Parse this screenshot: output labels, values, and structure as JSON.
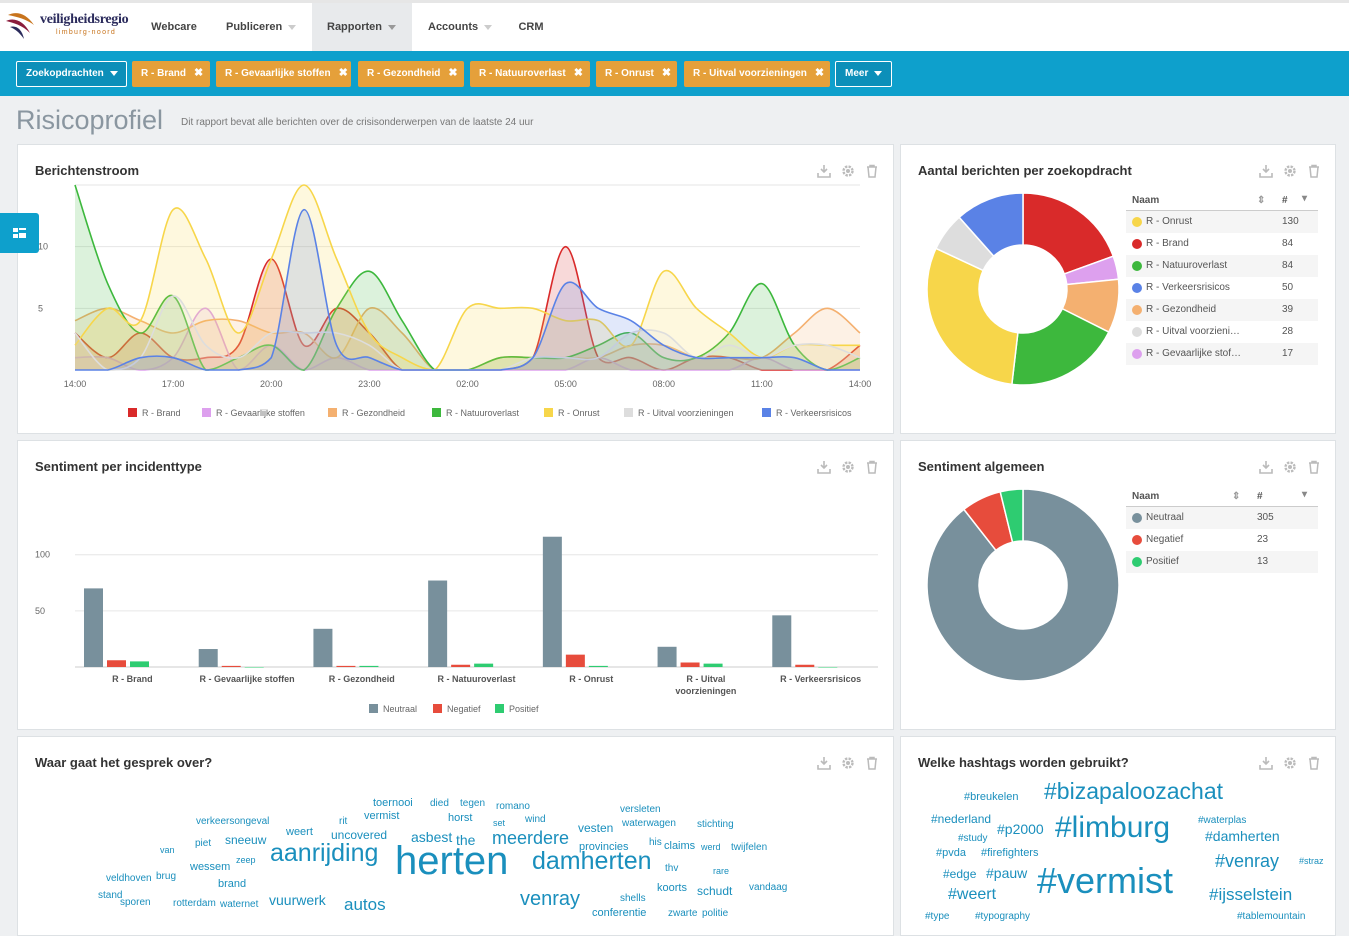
{
  "brand": {
    "name": "veiligheidsregio",
    "sub": "limburg-noord"
  },
  "nav": [
    {
      "label": "Webcare"
    },
    {
      "label": "Publiceren"
    },
    {
      "label": "Rapporten"
    },
    {
      "label": "Accounts"
    },
    {
      "label": "CRM"
    }
  ],
  "filters": {
    "search_label": "Zoekopdrachten",
    "chips": [
      "R - Brand",
      "R - Gevaarlijke stoffen",
      "R - Gezondheid",
      "R - Natuuroverlast",
      "R - Onrust",
      "R - Uitval voorzieningen"
    ],
    "more_label": "Meer"
  },
  "page": {
    "title": "Risicoprofiel",
    "subtitle": "Dit rapport bevat alle berichten over de crisisonderwerpen van de laatste 24 uur"
  },
  "colors": {
    "brand": "#e5a03a",
    "accent": "#0ea0cc",
    "red": "#d92a2a",
    "pink": "#dda0ee",
    "orange": "#f4b070",
    "green": "#3db83d",
    "yellow": "#f7d64a",
    "grey": "#dddddd",
    "blue": "#5a82e6"
  },
  "panels": {
    "stream": {
      "title": "Berichtenstroom"
    },
    "per_query": {
      "title": "Aantal berichten per zoekopdracht",
      "col_name": "Naam",
      "col_count": "#"
    },
    "sent_type": {
      "title": "Sentiment per incidenttype"
    },
    "sent_all": {
      "title": "Sentiment algemeen",
      "col_name": "Naam",
      "col_count": "#"
    },
    "words": {
      "title": "Waar gaat het gesprek over?"
    },
    "hashtags": {
      "title": "Welke hashtags worden gebruikt?"
    }
  },
  "chart_data": [
    {
      "type": "area",
      "title": "Berichtenstroom",
      "x": [
        "14:00",
        "15:00",
        "16:00",
        "17:00",
        "18:00",
        "19:00",
        "20:00",
        "21:00",
        "22:00",
        "23:00",
        "00:00",
        "01:00",
        "02:00",
        "03:00",
        "04:00",
        "05:00",
        "06:00",
        "07:00",
        "08:00",
        "09:00",
        "10:00",
        "11:00",
        "12:00",
        "13:00",
        "14:00"
      ],
      "x_ticks": [
        "14:00",
        "17:00",
        "20:00",
        "23:00",
        "02:00",
        "05:00",
        "08:00",
        "11:00",
        "14:00"
      ],
      "y_ticks": [
        "",
        "5",
        "10"
      ],
      "ylim": [
        0,
        15
      ],
      "series": [
        {
          "name": "R - Brand",
          "color": "#d92a2a",
          "values": [
            3,
            1,
            3,
            1,
            1,
            2,
            9,
            2,
            5,
            3,
            0,
            0,
            0,
            0,
            1,
            10,
            1,
            1,
            0,
            1,
            1,
            0,
            0,
            0,
            2
          ]
        },
        {
          "name": "R - Gevaarlijke stoffen",
          "color": "#dda0ee",
          "values": [
            1,
            1,
            0,
            1,
            5,
            0,
            2,
            0,
            1,
            0,
            0,
            0,
            0,
            0,
            0,
            0,
            1,
            0,
            0,
            0,
            0,
            1,
            0,
            0,
            0
          ]
        },
        {
          "name": "R - Gezondheid",
          "color": "#f4b070",
          "values": [
            4,
            5,
            4,
            3,
            4,
            4,
            3,
            3,
            1,
            5,
            3,
            0,
            0,
            1,
            1,
            1,
            1,
            2,
            2,
            1,
            1,
            1,
            3,
            5,
            3
          ]
        },
        {
          "name": "R - Natuuroverlast",
          "color": "#3db83d",
          "values": [
            15,
            7,
            3,
            6,
            0,
            1,
            2,
            0,
            5,
            8,
            4,
            0,
            0,
            1,
            1,
            1,
            2,
            3,
            1,
            1,
            3,
            7,
            2,
            0,
            1
          ]
        },
        {
          "name": "R - Onrust",
          "color": "#f7d64a",
          "values": [
            2,
            5,
            4,
            13,
            9,
            3,
            9,
            15,
            9,
            3,
            1,
            0,
            5,
            5,
            5,
            4,
            4,
            2,
            8,
            5,
            3,
            1,
            2,
            2,
            2
          ]
        },
        {
          "name": "R - Uitval voorzieningen",
          "color": "#dddddd",
          "values": [
            3,
            0,
            1,
            6,
            2,
            1,
            3,
            3,
            3,
            2,
            0,
            0,
            0,
            0,
            1,
            1,
            1,
            3,
            3,
            1,
            2,
            1,
            2,
            2,
            1
          ]
        },
        {
          "name": "R - Verkeersrisicos",
          "color": "#5a82e6",
          "values": [
            0,
            0,
            1,
            1,
            0,
            0,
            1,
            13,
            2,
            1,
            0,
            0,
            0,
            0,
            1,
            7,
            5,
            4,
            2,
            1,
            1,
            1,
            1,
            0,
            0
          ]
        }
      ]
    },
    {
      "type": "pie",
      "title": "Aantal berichten per zoekopdracht",
      "slices": [
        {
          "name": "R - Onrust",
          "value": 130,
          "color": "#f7d64a"
        },
        {
          "name": "R - Brand",
          "value": 84,
          "color": "#d92a2a"
        },
        {
          "name": "R - Natuuroverlast",
          "value": 84,
          "color": "#3db83d"
        },
        {
          "name": "R - Verkeersrisicos",
          "value": 50,
          "color": "#5a82e6"
        },
        {
          "name": "R - Gezondheid",
          "value": 39,
          "color": "#f4b070"
        },
        {
          "name": "R - Uitval voorzieni…",
          "value": 28,
          "color": "#dddddd"
        },
        {
          "name": "R - Gevaarlijke stof…",
          "value": 17,
          "color": "#dda0ee"
        }
      ],
      "order": [
        "R - Brand",
        "R - Gevaarlijke stof…",
        "R - Gezondheid",
        "R - Natuuroverlast",
        "R - Onrust",
        "R - Uitval voorzieni…",
        "R - Verkeersrisicos"
      ]
    },
    {
      "type": "bar",
      "title": "Sentiment per incidenttype",
      "categories": [
        "R - Brand",
        "R - Gevaarlijke stoffen",
        "R - Gezondheid",
        "R - Natuuroverlast",
        "R - Onrust",
        "R - Uitval voorzieningen",
        "R - Verkeersrisicos"
      ],
      "category_lines": [
        [
          "R - Brand"
        ],
        [
          "R - Gevaarlijke stoffen"
        ],
        [
          "R - Gezondheid"
        ],
        [
          "R - Natuuroverlast"
        ],
        [
          "R - Onrust"
        ],
        [
          "R - Uitval",
          "voorzieningen"
        ],
        [
          "R - Verkeersrisicos"
        ]
      ],
      "y_ticks": [
        "50",
        "100"
      ],
      "ylim": [
        0,
        130
      ],
      "series": [
        {
          "name": "Neutraal",
          "color": "#78909c",
          "values": [
            70,
            16,
            34,
            77,
            116,
            18,
            46
          ]
        },
        {
          "name": "Negatief",
          "color": "#e74c3c",
          "values": [
            6,
            1,
            1,
            2,
            11,
            4,
            2
          ]
        },
        {
          "name": "Positief",
          "color": "#2ecc71",
          "values": [
            5,
            0,
            1,
            3,
            1,
            3,
            0
          ]
        }
      ]
    },
    {
      "type": "pie",
      "title": "Sentiment algemeen",
      "slices": [
        {
          "name": "Neutraal",
          "value": 305,
          "color": "#78909c"
        },
        {
          "name": "Negatief",
          "value": 23,
          "color": "#e74c3c"
        },
        {
          "name": "Positief",
          "value": 13,
          "color": "#2ecc71"
        }
      ]
    }
  ],
  "words": [
    "toernooi",
    "died",
    "tegen",
    "romano",
    "versleten",
    "verkeersongeval",
    "rit",
    "vermist",
    "horst",
    "set",
    "wind",
    "waterwagen",
    "stichting",
    "weert",
    "uncovered",
    "asbest",
    "the",
    "vesten",
    "meerdere",
    "his",
    "claims",
    "werd",
    "twijfelen",
    "van",
    "piet",
    "sneeuw",
    "provincies",
    "zeep",
    "aanrijding",
    "wessem",
    "veldhoven",
    "brug",
    "thv",
    "rare",
    "herten",
    "damherten",
    "brand",
    "koorts",
    "schudt",
    "vandaag",
    "stand",
    "sporen",
    "rotterdam",
    "waternet",
    "vuurwerk",
    "autos",
    "venray",
    "shells",
    "conferentie",
    "zwarte",
    "politie"
  ],
  "hashtags": [
    "#breukelen",
    "#bizapaloozachat",
    "#nederland",
    "#waterplas",
    "#p2000",
    "#study",
    "#limburg",
    "#damherten",
    "#pvda",
    "#firefighters",
    "#venray",
    "#straz",
    "#edge",
    "#pauw",
    "#weert",
    "#vermist",
    "#ijsselstein",
    "#type",
    "#typography",
    "#tablemountain"
  ]
}
